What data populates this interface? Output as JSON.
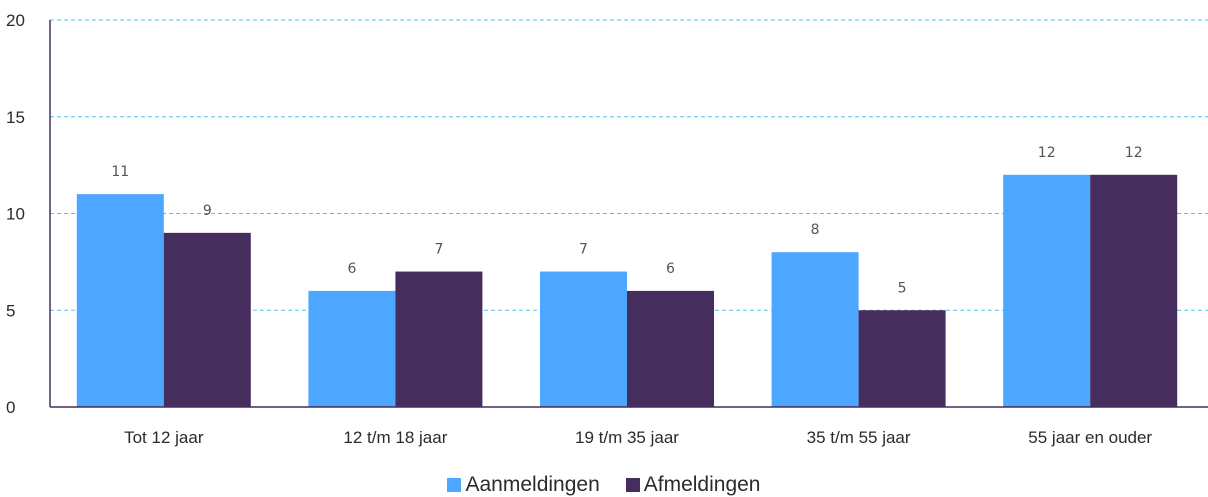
{
  "chart_data": {
    "type": "bar",
    "categories": [
      "Tot 12 jaar",
      "12 t/m 18 jaar",
      "19 t/m 35 jaar",
      "35 t/m 55 jaar",
      "55 jaar en ouder"
    ],
    "series": [
      {
        "name": "Aanmeldingen",
        "values": [
          11,
          6,
          7,
          8,
          12
        ],
        "color": "#4da6ff"
      },
      {
        "name": "Afmeldingen",
        "values": [
          9,
          7,
          6,
          5,
          12
        ],
        "color": "#452d5e"
      }
    ],
    "ylim": [
      0,
      20
    ],
    "yticks": [
      0,
      5,
      10,
      15,
      20
    ],
    "grid": true,
    "legend_position": "bottom-center",
    "title": "",
    "xlabel": "",
    "ylabel": ""
  }
}
